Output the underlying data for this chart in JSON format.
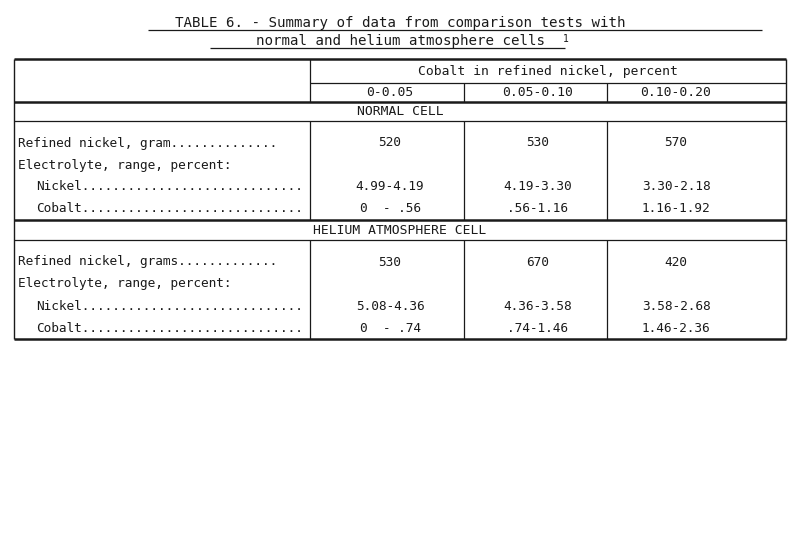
{
  "title_line1": "TABLE 6. - Summary of data from comparison tests with",
  "title_line2": "normal and helium atmosphere cells",
  "title_superscript": "1",
  "bg_color": "#ffffff",
  "font_color": "#1a1a1a",
  "header_col_span": "Cobalt in refined nickel, percent",
  "col_headers": [
    "0-0.05",
    "0.05-0.10",
    "0.10-0.20"
  ],
  "section1_title": "NORMAL CELL",
  "section2_title": "HELIUM ATMOSPHERE CELL",
  "normal_rows": [
    {
      "label": "Refined nickel, gram..............",
      "indent": false,
      "values": [
        "520",
        "530",
        "570"
      ]
    },
    {
      "label": "Electrolyte, range, percent:",
      "indent": false,
      "values": [
        "",
        "",
        ""
      ]
    },
    {
      "label": "  Nickel.............................",
      "indent": true,
      "values": [
        "4.99-4.19",
        "4.19-3.30",
        "3.30-2.18"
      ]
    },
    {
      "label": "  Cobalt.............................",
      "indent": true,
      "values": [
        "0  - .56",
        ".56-1.16",
        "1.16-1.92"
      ]
    }
  ],
  "helium_rows": [
    {
      "label": "Refined nickel, grams.............",
      "indent": false,
      "values": [
        "530",
        "670",
        "420"
      ]
    },
    {
      "label": "Electrolyte, range, percent:",
      "indent": false,
      "values": [
        "",
        "",
        ""
      ]
    },
    {
      "label": "  Nickel.............................",
      "indent": true,
      "values": [
        "5.08-4.36",
        "4.36-3.58",
        "3.58-2.68"
      ]
    },
    {
      "label": "  Cobalt.............................",
      "indent": true,
      "values": [
        "0  - .74",
        ".74-1.46",
        "1.46-2.36"
      ]
    }
  ],
  "fig_width": 8.0,
  "fig_height": 5.49,
  "dpi": 100
}
